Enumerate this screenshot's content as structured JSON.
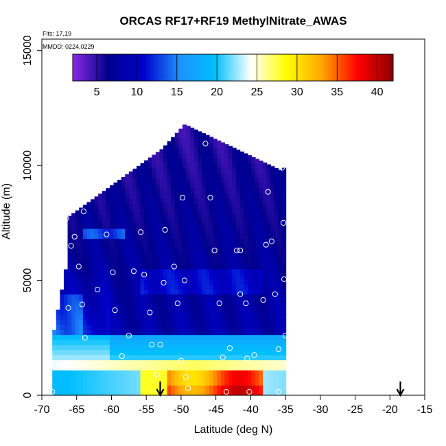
{
  "chart_data": {
    "type": "heatmap",
    "title": "ORCAS RF17+RF19 MethylNitrate_AWAS",
    "annotations": [
      "Flts: 17,19",
      "MMDD: 0224,0229"
    ],
    "xlabel": "Latitude (deg N)",
    "ylabel": "Altitude (m)",
    "xlim": [
      -70,
      -15
    ],
    "ylim": [
      0,
      15500
    ],
    "x_ticks": [
      -70,
      -65,
      -60,
      -55,
      -50,
      -45,
      -40,
      -35,
      -30,
      -25,
      -20,
      -15
    ],
    "y_ticks": [
      0,
      5000,
      10000,
      15000
    ],
    "colorbar": {
      "range": [
        2,
        42
      ],
      "ticks": [
        5,
        10,
        15,
        20,
        25,
        30,
        35,
        40
      ],
      "colors": [
        "#8a2be2",
        "#00008b",
        "#0000cd",
        "#1e90ff",
        "#00bfff",
        "#ffffff",
        "#ffff00",
        "#ffa500",
        "#ff0000",
        "#8b0000"
      ]
    },
    "grid": false,
    "sample_points": [
      [
        -68.5,
        150
      ],
      [
        -67.2,
        5600
      ],
      [
        -66.5,
        7700
      ],
      [
        -66.2,
        3800
      ],
      [
        -65.8,
        6500
      ],
      [
        -65.3,
        6900
      ],
      [
        -64.7,
        5600
      ],
      [
        -64.2,
        3950
      ],
      [
        -63.8,
        2500
      ],
      [
        -64.0,
        8000
      ],
      [
        -62.0,
        4600
      ],
      [
        -60.7,
        7000
      ],
      [
        -59.8,
        5350
      ],
      [
        -59.5,
        3700
      ],
      [
        -58.5,
        1700
      ],
      [
        -57.5,
        2600
      ],
      [
        -56.8,
        5400
      ],
      [
        -55.8,
        7100
      ],
      [
        -55.3,
        5250
      ],
      [
        -54.5,
        3600
      ],
      [
        -54.2,
        2200
      ],
      [
        -53.5,
        900
      ],
      [
        -53.0,
        2200
      ],
      [
        -52.5,
        4900
      ],
      [
        -52.3,
        7200
      ],
      [
        -51.0,
        5600
      ],
      [
        -50.5,
        4000
      ],
      [
        -50.0,
        1500
      ],
      [
        -49.8,
        8600
      ],
      [
        -49.5,
        5000
      ],
      [
        -49.3,
        800
      ],
      [
        -49.0,
        300
      ],
      [
        -46.5,
        10950
      ],
      [
        -45.8,
        8600
      ],
      [
        -45.2,
        6300
      ],
      [
        -44.5,
        4000
      ],
      [
        -44.0,
        1650
      ],
      [
        -43.5,
        150
      ],
      [
        -43.0,
        2050
      ],
      [
        -42.0,
        6300
      ],
      [
        -41.5,
        6300
      ],
      [
        -41.5,
        4400
      ],
      [
        -40.7,
        4000
      ],
      [
        -40.5,
        1600
      ],
      [
        -40.2,
        150
      ],
      [
        -39.5,
        1750
      ],
      [
        -38.2,
        4150
      ],
      [
        -37.8,
        6550
      ],
      [
        -37.5,
        8850
      ],
      [
        -37.0,
        6700
      ],
      [
        -36.5,
        4400
      ],
      [
        -36.0,
        2000
      ],
      [
        -35.5,
        9900
      ],
      [
        -35.3,
        7500
      ],
      [
        -35.2,
        5050
      ],
      [
        -35.0,
        2600
      ],
      [
        -36.0,
        150
      ]
    ],
    "launch_markers_lat": [
      -53.0,
      -18.5
    ]
  }
}
